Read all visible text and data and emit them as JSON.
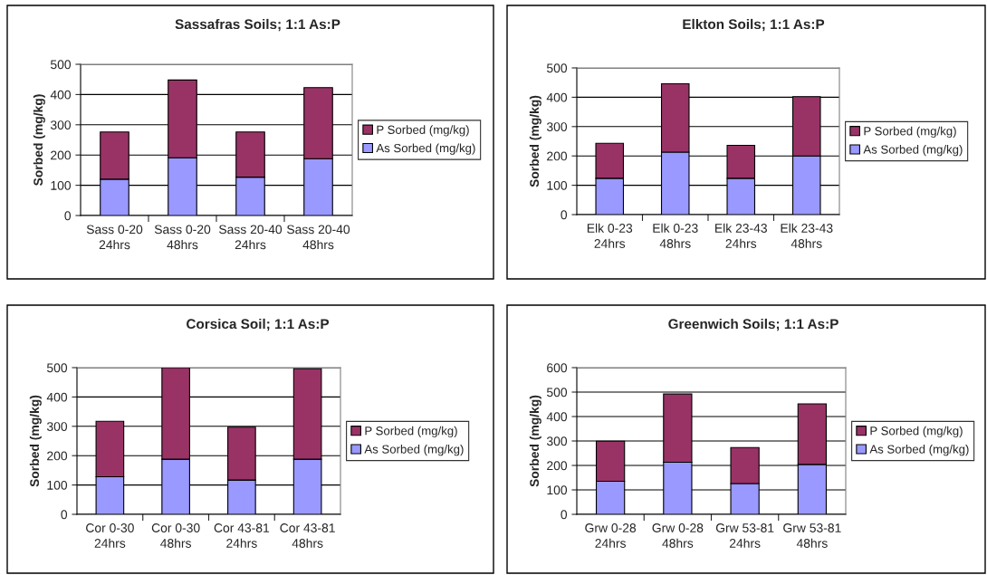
{
  "chart_data": [
    {
      "type": "bar",
      "title": "Sassafras Soils; 1:1 As:P",
      "ylabel": "Sorbed (mg/kg)",
      "categories": [
        "Sass 0-20 24hrs",
        "Sass 0-20 48hrs",
        "Sass 20-40 24hrs",
        "Sass 20-40 48hrs"
      ],
      "stacked": true,
      "ylim": [
        0,
        500
      ],
      "yticks": [
        0,
        100,
        200,
        300,
        400,
        500
      ],
      "grid": "y",
      "legend": "right",
      "series": [
        {
          "name": "As Sorbed (mg/kg)",
          "color": "#9999ff",
          "values": [
            120,
            191,
            127,
            188
          ]
        },
        {
          "name": "P Sorbed (mg/kg)",
          "color": "#993366",
          "values": [
            156,
            257,
            149,
            235
          ]
        }
      ]
    },
    {
      "type": "bar",
      "title": "Elkton Soils; 1:1 As:P",
      "ylabel": "Sorbed (mg/kg)",
      "categories": [
        "Elk 0-23 24hrs",
        "Elk 0-23 48hrs",
        "Elk 23-43 24hrs",
        "Elk 23-43 48hrs"
      ],
      "stacked": true,
      "ylim": [
        0,
        500
      ],
      "yticks": [
        0,
        100,
        200,
        300,
        400,
        500
      ],
      "grid": "y",
      "legend": "right",
      "series": [
        {
          "name": "As Sorbed (mg/kg)",
          "color": "#9999ff",
          "values": [
            124,
            213,
            124,
            200
          ]
        },
        {
          "name": "P Sorbed (mg/kg)",
          "color": "#993366",
          "values": [
            119,
            233,
            112,
            202
          ]
        }
      ]
    },
    {
      "type": "bar",
      "title": "Corsica Soil; 1:1 As:P",
      "ylabel": "Sorbed (mg/kg)",
      "categories": [
        "Cor 0-30 24hrs",
        "Cor 0-30 48hrs",
        "Cor 43-81 24hrs",
        "Cor 43-81 48hrs"
      ],
      "stacked": true,
      "ylim": [
        0,
        500
      ],
      "yticks": [
        0,
        100,
        200,
        300,
        400,
        500
      ],
      "grid": "y",
      "legend": "right",
      "series": [
        {
          "name": "As Sorbed (mg/kg)",
          "color": "#9999ff",
          "values": [
            128,
            188,
            117,
            188
          ]
        },
        {
          "name": "P Sorbed (mg/kg)",
          "color": "#993366",
          "values": [
            189,
            312,
            180,
            308
          ]
        }
      ]
    },
    {
      "type": "bar",
      "title": "Greenwich Soils; 1:1 As:P",
      "ylabel": "Sorbed (mg/kg)",
      "categories": [
        "Grw 0-28 24hrs",
        "Grw 0-28 48hrs",
        "Grw 53-81 24hrs",
        "Grw 53-81 48hrs"
      ],
      "stacked": true,
      "ylim": [
        0,
        600
      ],
      "yticks": [
        0,
        100,
        200,
        300,
        400,
        500,
        600
      ],
      "grid": "y",
      "legend": "right",
      "series": [
        {
          "name": "As Sorbed (mg/kg)",
          "color": "#9999ff",
          "values": [
            135,
            213,
            126,
            204
          ]
        },
        {
          "name": "P Sorbed (mg/kg)",
          "color": "#993366",
          "values": [
            164,
            279,
            147,
            248
          ]
        }
      ]
    }
  ]
}
